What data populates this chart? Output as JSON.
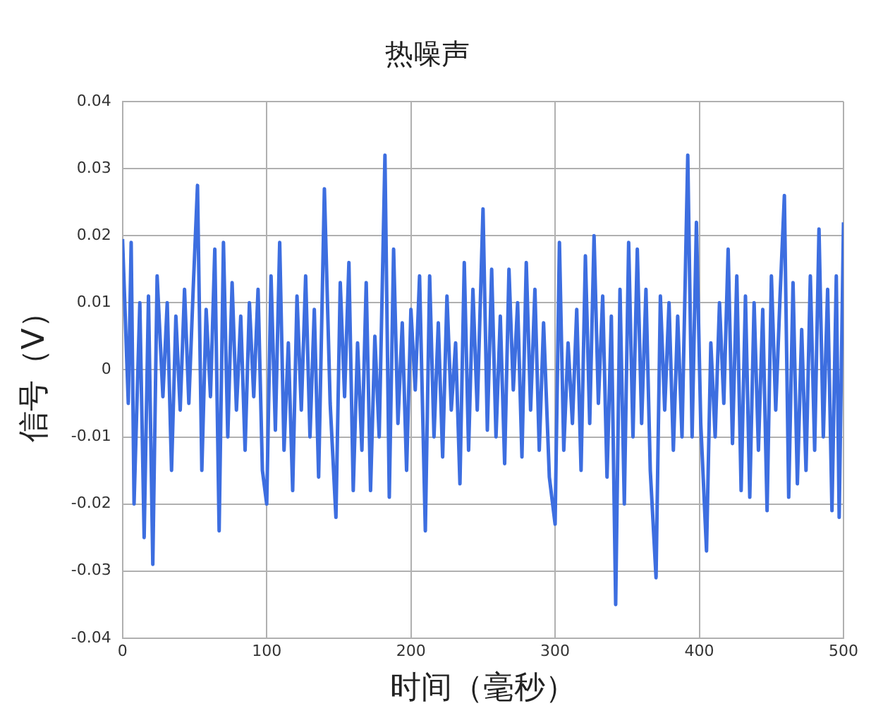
{
  "chart_data": {
    "type": "line",
    "title": "热噪声",
    "xlabel": "时间（毫秒）",
    "ylabel": "信号（V）",
    "xlim": [
      0,
      500
    ],
    "xticks": [
      0,
      100,
      200,
      300,
      400,
      500
    ],
    "ylim": [
      -0.04,
      0.04
    ],
    "yticks": [
      -0.04,
      -0.03,
      -0.02,
      -0.01,
      0,
      0.01,
      0.02,
      0.03,
      0.04
    ],
    "grid": true,
    "legend": false,
    "marker": "none",
    "line_style": "solid",
    "series": [
      {
        "color": "#3d6ee0",
        "x": [
          0,
          4,
          6,
          8,
          12,
          15,
          18,
          21,
          24,
          28,
          31,
          34,
          37,
          40,
          43,
          46,
          49,
          52,
          55,
          58,
          61,
          64,
          67,
          70,
          73,
          76,
          79,
          82,
          85,
          88,
          91,
          94,
          97,
          100,
          103,
          106,
          109,
          112,
          115,
          118,
          121,
          124,
          127,
          130,
          133,
          136,
          140,
          144,
          148,
          151,
          154,
          157,
          160,
          163,
          166,
          169,
          172,
          175,
          178,
          182,
          185,
          188,
          191,
          194,
          197,
          200,
          203,
          206,
          210,
          213,
          216,
          219,
          222,
          225,
          228,
          231,
          234,
          237,
          240,
          243,
          246,
          250,
          253,
          256,
          259,
          262,
          265,
          268,
          271,
          274,
          277,
          280,
          283,
          286,
          289,
          292,
          296,
          300,
          303,
          306,
          309,
          312,
          315,
          318,
          321,
          324,
          327,
          330,
          333,
          336,
          339,
          342,
          345,
          348,
          351,
          354,
          357,
          360,
          363,
          366,
          370,
          373,
          376,
          379,
          382,
          385,
          388,
          392,
          395,
          398,
          401,
          405,
          408,
          411,
          414,
          417,
          420,
          423,
          426,
          429,
          432,
          435,
          438,
          441,
          444,
          447,
          450,
          453,
          456,
          459,
          462,
          465,
          468,
          471,
          474,
          477,
          480,
          483,
          486,
          489,
          492,
          495,
          497,
          500
        ],
        "values": [
          0.0195,
          -0.005,
          0.019,
          -0.02,
          0.01,
          -0.025,
          0.011,
          -0.029,
          0.014,
          -0.004,
          0.01,
          -0.015,
          0.008,
          -0.006,
          0.012,
          -0.005,
          0.012,
          0.0275,
          -0.015,
          0.009,
          -0.004,
          0.018,
          -0.024,
          0.019,
          -0.01,
          0.013,
          -0.006,
          0.008,
          -0.012,
          0.01,
          -0.004,
          0.012,
          -0.015,
          -0.02,
          0.014,
          -0.009,
          0.019,
          -0.012,
          0.004,
          -0.018,
          0.011,
          -0.006,
          0.014,
          -0.01,
          0.009,
          -0.016,
          0.027,
          -0.005,
          -0.022,
          0.013,
          -0.004,
          0.016,
          -0.018,
          0.004,
          -0.012,
          0.013,
          -0.018,
          0.005,
          -0.01,
          0.032,
          -0.019,
          0.018,
          -0.008,
          0.007,
          -0.015,
          0.009,
          -0.003,
          0.014,
          -0.024,
          0.014,
          -0.01,
          0.007,
          -0.013,
          0.011,
          -0.006,
          0.004,
          -0.017,
          0.016,
          -0.012,
          0.012,
          -0.006,
          0.024,
          -0.009,
          0.015,
          -0.01,
          0.008,
          -0.014,
          0.015,
          -0.003,
          0.01,
          -0.013,
          0.016,
          -0.006,
          0.012,
          -0.012,
          0.007,
          -0.016,
          -0.023,
          0.019,
          -0.012,
          0.004,
          -0.008,
          0.009,
          -0.015,
          0.017,
          -0.008,
          0.02,
          -0.005,
          0.011,
          -0.016,
          0.008,
          -0.035,
          0.012,
          -0.02,
          0.019,
          -0.01,
          0.018,
          -0.008,
          0.012,
          -0.015,
          -0.031,
          0.011,
          -0.006,
          0.01,
          -0.012,
          0.008,
          -0.01,
          0.032,
          -0.01,
          0.022,
          -0.008,
          -0.027,
          0.004,
          -0.01,
          0.01,
          -0.005,
          0.018,
          -0.011,
          0.014,
          -0.018,
          0.011,
          -0.019,
          0.01,
          -0.012,
          0.009,
          -0.021,
          0.014,
          -0.006,
          0.011,
          0.026,
          -0.019,
          0.013,
          -0.017,
          0.006,
          -0.015,
          0.014,
          -0.012,
          0.021,
          -0.01,
          0.012,
          -0.021,
          0.014,
          -0.022,
          0.022
        ]
      }
    ]
  }
}
